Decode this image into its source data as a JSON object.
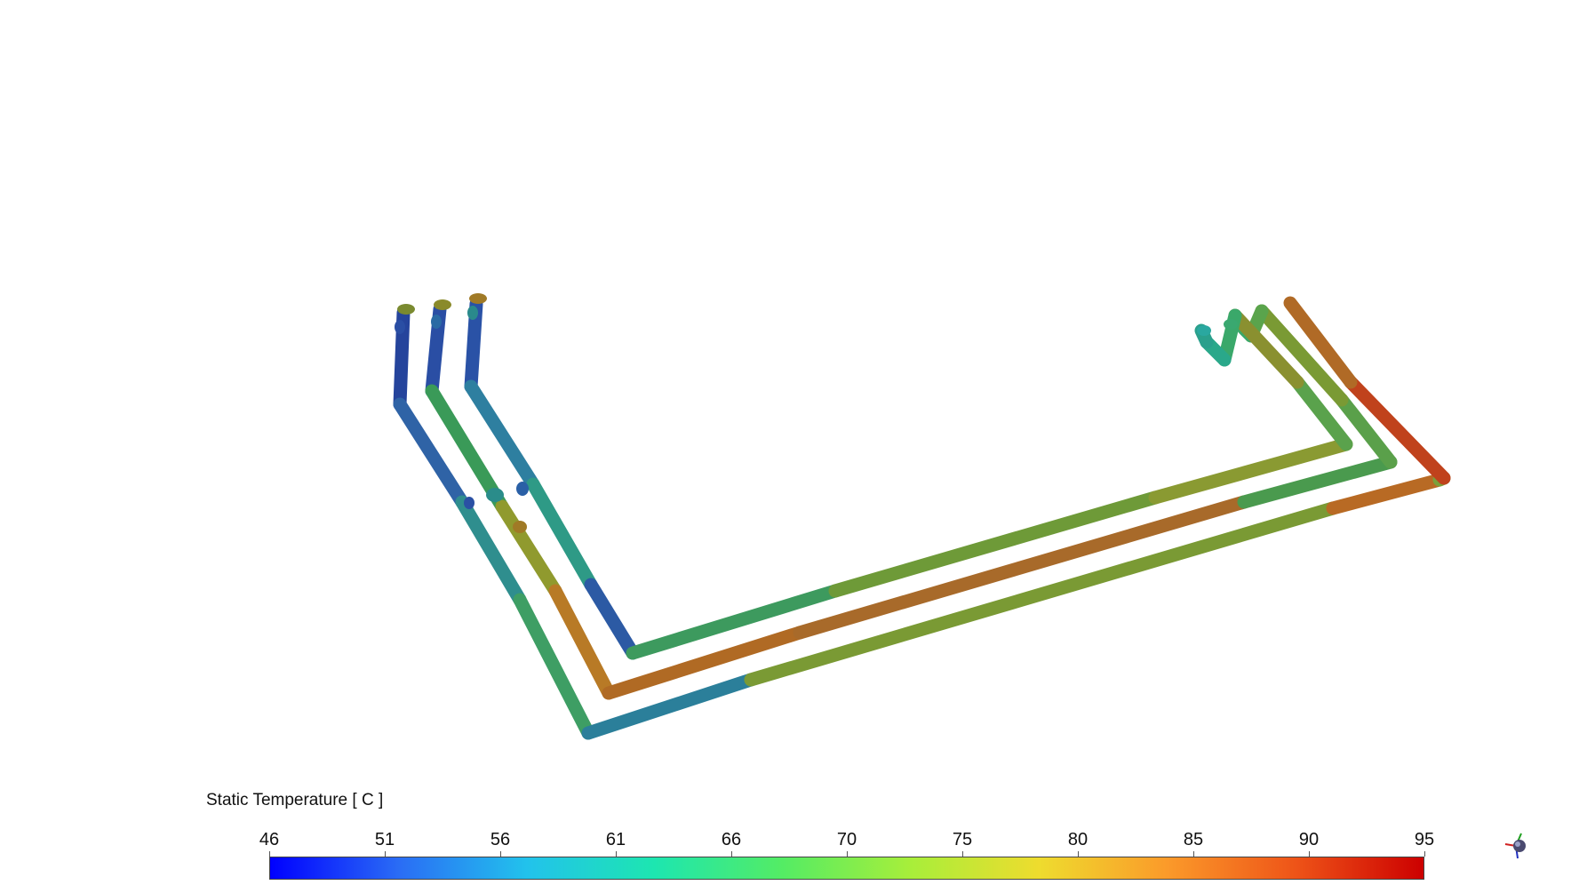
{
  "legend": {
    "title": "Static Temperature [ C ]",
    "ticks": [
      "46",
      "51",
      "56",
      "61",
      "66",
      "70",
      "75",
      "80",
      "85",
      "90",
      "95"
    ],
    "min": 46,
    "max": 95,
    "colormap": [
      "#0000ff",
      "#2a6cf5",
      "#22c2ec",
      "#1de6b0",
      "#54ec64",
      "#a8ee3a",
      "#eedc2e",
      "#fb9a2a",
      "#ee5418",
      "#cc0000"
    ]
  },
  "colors": {
    "blue": "#2b4fa8",
    "teal": "#2a8a8c",
    "green": "#4aa84e",
    "olive": "#8a9a30",
    "orange": "#c07a22",
    "red": "#c23a18"
  },
  "triad_icon": "axis-triad-icon"
}
